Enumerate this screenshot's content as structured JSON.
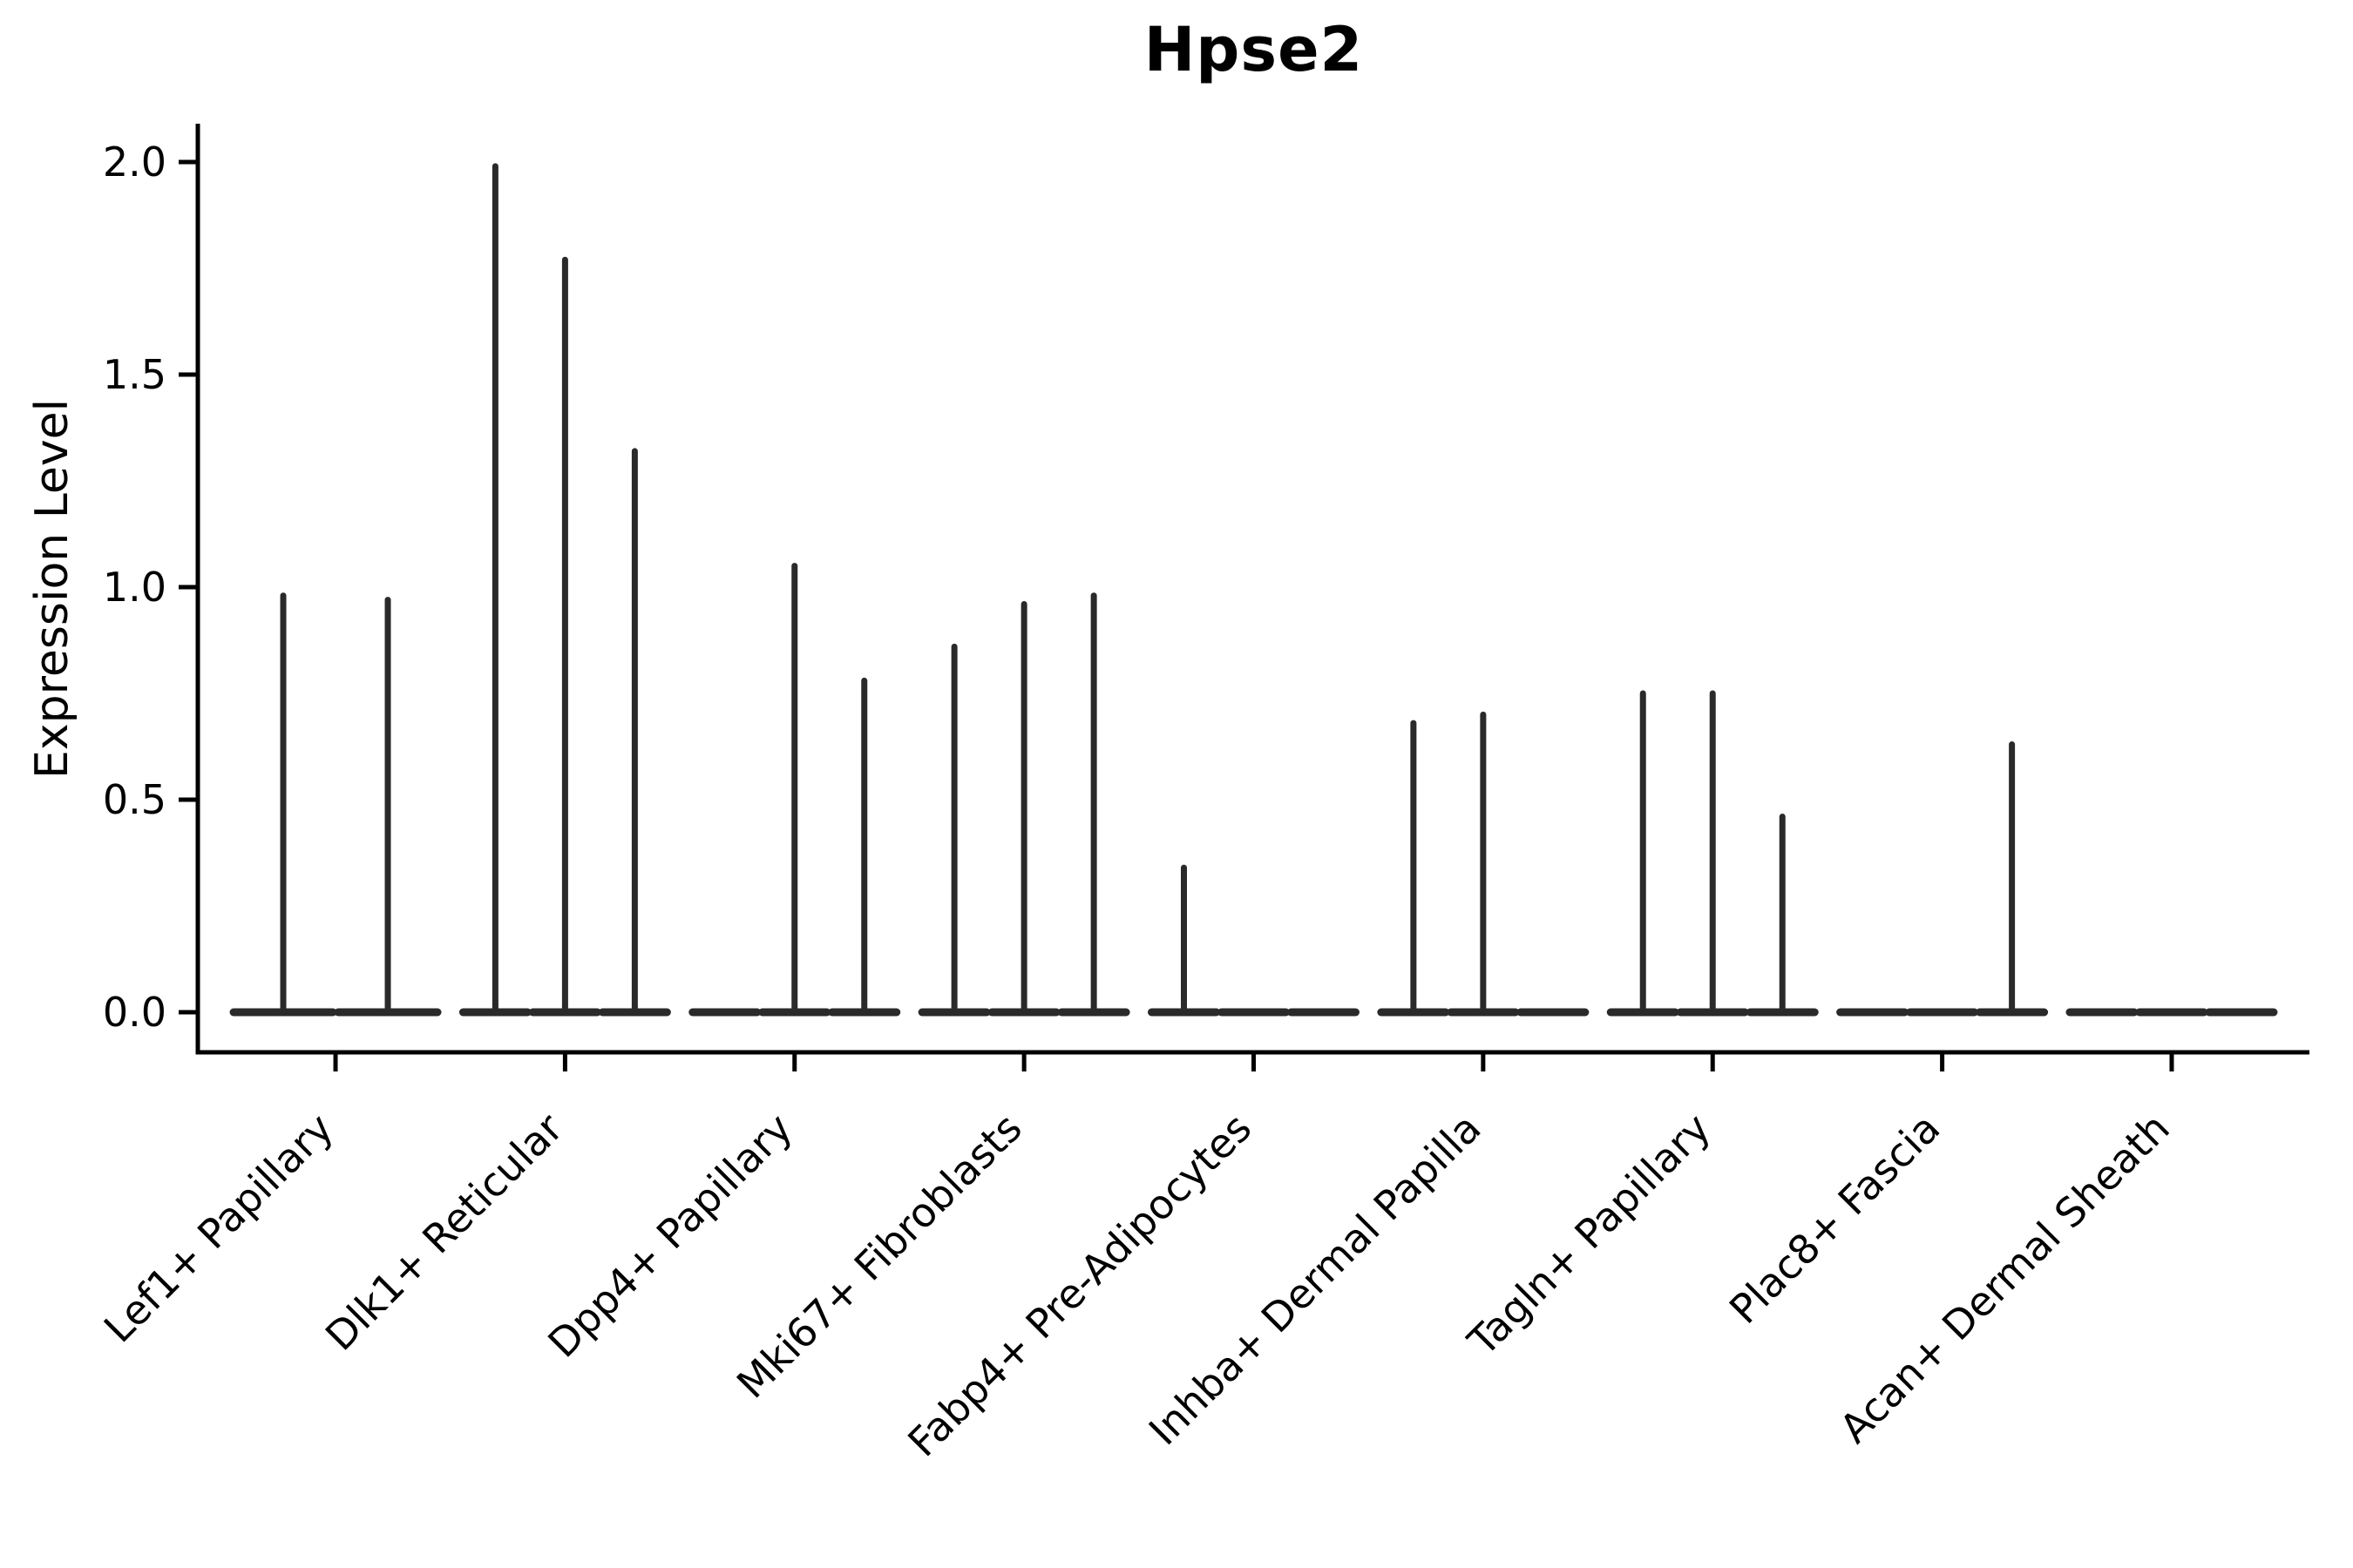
{
  "chart_data": {
    "type": "violin",
    "title": "Hpse2",
    "xlabel": "",
    "ylabel": "Expression Level",
    "ylim": [
      -0.1,
      2.09
    ],
    "ytick_values": [
      0.0,
      0.5,
      1.0,
      1.5,
      2.0
    ],
    "ytick_labels": [
      "0.0",
      "0.5",
      "1.0",
      "1.5",
      "2.0"
    ],
    "grid": false,
    "legend_position": "none",
    "background_color": "#ffffff",
    "axis_color": "#000000",
    "violin_color": "#2a2a2a",
    "categories": [
      "Lef1+ Papillary",
      "Dlk1+ Reticular",
      "Dpp4+ Papillary",
      "Mki67+ Fibroblasts",
      "Fabp4+ Pre-Adipocytes",
      "Inhba+ Dermal Papilla",
      "Tagln+ Papillary",
      "Plac8+ Fascia",
      "Acan+ Dermal Sheath"
    ],
    "groups": [
      {
        "label": "Lef1+ Papillary",
        "violin_max_values": [
          0.98,
          0.97
        ]
      },
      {
        "label": "Dlk1+ Reticular",
        "violin_max_values": [
          1.99,
          1.77,
          1.32
        ]
      },
      {
        "label": "Dpp4+ Papillary",
        "violin_max_values": [
          0,
          1.05,
          0.78
        ]
      },
      {
        "label": "Mki67+ Fibroblasts",
        "violin_max_values": [
          0.86,
          0.96,
          0.98
        ]
      },
      {
        "label": "Fabp4+ Pre-Adipocytes",
        "violin_max_values": [
          0.34,
          0,
          0
        ]
      },
      {
        "label": "Inhba+ Dermal Papilla",
        "violin_max_values": [
          0.68,
          0.7,
          0
        ]
      },
      {
        "label": "Tagln+ Papillary",
        "violin_max_values": [
          0.75,
          0.75,
          0.46
        ]
      },
      {
        "label": "Plac8+ Fascia",
        "violin_max_values": [
          0,
          0,
          0.63
        ]
      },
      {
        "label": "Acan+ Dermal Sheath",
        "violin_max_values": [
          0,
          0,
          0
        ]
      }
    ]
  }
}
